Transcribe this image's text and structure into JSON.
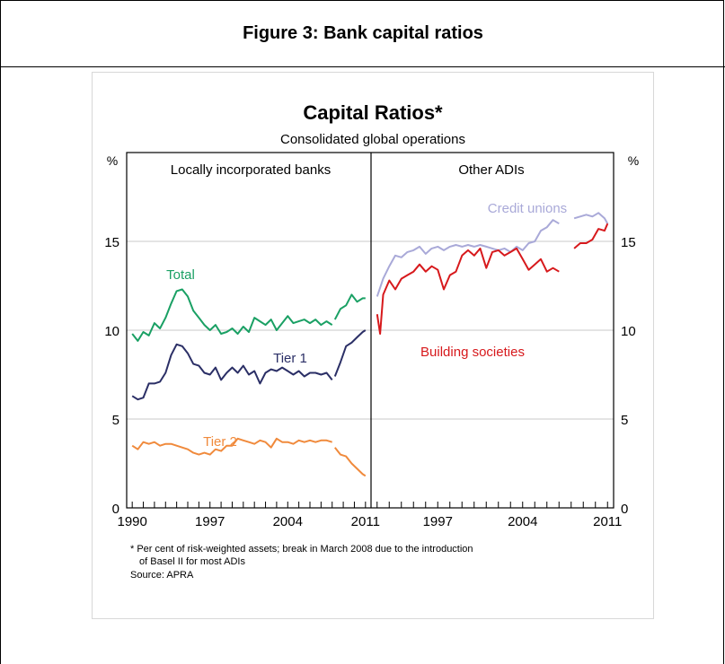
{
  "figure": {
    "heading": "Figure 3: Bank capital ratios"
  },
  "chart_data": {
    "type": "line",
    "title": "Capital Ratios*",
    "subtitle": "Consolidated global operations",
    "ylabel_left": "%",
    "ylabel_right": "%",
    "ylim": [
      0,
      20
    ],
    "yticks": [
      0,
      5,
      10,
      15
    ],
    "grid": true,
    "footnote_1": "* Per cent of risk-weighted assets; break in March 2008 due to the introduction",
    "footnote_2": "of Basel II for most ADIs",
    "source": "Source: APRA",
    "colors": {
      "total": "#1aa064",
      "tier1": "#2b2f66",
      "tier2": "#f08a3c",
      "credit_unions": "#a9a9d8",
      "building_societies": "#d7191c"
    },
    "panels": [
      {
        "title": "Locally incorporated banks",
        "xlim": [
          1989.5,
          2011.5
        ],
        "xtick_labels": [
          "1990",
          "1997",
          "2004",
          "2011"
        ],
        "xtick_values": [
          1990,
          1997,
          2004,
          2011
        ],
        "series": [
          {
            "name": "Total",
            "color_key": "total",
            "x": [
              1990,
              1990.5,
              1991,
              1991.5,
              1992,
              1992.5,
              1993,
              1993.5,
              1994,
              1994.5,
              1995,
              1995.5,
              1996,
              1996.5,
              1997,
              1997.5,
              1998,
              1998.5,
              1999,
              1999.5,
              2000,
              2000.5,
              2001,
              2001.5,
              2002,
              2002.5,
              2003,
              2003.5,
              2004,
              2004.5,
              2005,
              2005.5,
              2006,
              2006.5,
              2007,
              2007.5,
              2008
            ],
            "y": [
              9.8,
              9.4,
              9.9,
              9.7,
              10.4,
              10.1,
              10.7,
              11.5,
              12.2,
              12.3,
              11.9,
              11.1,
              10.7,
              10.3,
              10.0,
              10.3,
              9.8,
              9.9,
              10.1,
              9.8,
              10.2,
              9.9,
              10.7,
              10.5,
              10.3,
              10.6,
              10.0,
              10.4,
              10.8,
              10.4,
              10.5,
              10.6,
              10.4,
              10.6,
              10.3,
              10.5,
              10.3
            ]
          },
          {
            "name": "",
            "color_key": "total",
            "x": [
              2008.25,
              2008.75,
              2009.25,
              2009.75,
              2010.25,
              2010.75,
              2011
            ],
            "y": [
              10.6,
              11.2,
              11.4,
              12.0,
              11.6,
              11.8,
              11.8
            ]
          },
          {
            "name": "Tier 1",
            "color_key": "tier1",
            "x": [
              1990,
              1990.5,
              1991,
              1991.5,
              1992,
              1992.5,
              1993,
              1993.5,
              1994,
              1994.5,
              1995,
              1995.5,
              1996,
              1996.5,
              1997,
              1997.5,
              1998,
              1998.5,
              1999,
              1999.5,
              2000,
              2000.5,
              2001,
              2001.5,
              2002,
              2002.5,
              2003,
              2003.5,
              2004,
              2004.5,
              2005,
              2005.5,
              2006,
              2006.5,
              2007,
              2007.5,
              2008
            ],
            "y": [
              6.3,
              6.1,
              6.2,
              7.0,
              7.0,
              7.1,
              7.6,
              8.6,
              9.2,
              9.1,
              8.7,
              8.1,
              8.0,
              7.6,
              7.5,
              7.9,
              7.2,
              7.6,
              7.9,
              7.6,
              8.0,
              7.5,
              7.7,
              7.0,
              7.6,
              7.8,
              7.7,
              7.9,
              7.7,
              7.5,
              7.7,
              7.4,
              7.6,
              7.6,
              7.5,
              7.6,
              7.2
            ]
          },
          {
            "name": "",
            "color_key": "tier1",
            "x": [
              2008.25,
              2008.75,
              2009.25,
              2009.75,
              2010.25,
              2010.75,
              2011
            ],
            "y": [
              7.4,
              8.2,
              9.1,
              9.3,
              9.6,
              9.9,
              10.0
            ]
          },
          {
            "name": "Tier 2",
            "color_key": "tier2",
            "x": [
              1990,
              1990.5,
              1991,
              1991.5,
              1992,
              1992.5,
              1993,
              1993.5,
              1994,
              1994.5,
              1995,
              1995.5,
              1996,
              1996.5,
              1997,
              1997.5,
              1998,
              1998.5,
              1999,
              1999.5,
              2000,
              2000.5,
              2001,
              2001.5,
              2002,
              2002.5,
              2003,
              2003.5,
              2004,
              2004.5,
              2005,
              2005.5,
              2006,
              2006.5,
              2007,
              2007.5,
              2008
            ],
            "y": [
              3.5,
              3.3,
              3.7,
              3.6,
              3.7,
              3.5,
              3.6,
              3.6,
              3.5,
              3.4,
              3.3,
              3.1,
              3.0,
              3.1,
              3.0,
              3.3,
              3.2,
              3.5,
              3.5,
              3.9,
              3.8,
              3.7,
              3.6,
              3.8,
              3.7,
              3.4,
              3.9,
              3.7,
              3.7,
              3.6,
              3.8,
              3.7,
              3.8,
              3.7,
              3.8,
              3.8,
              3.7
            ]
          },
          {
            "name": "",
            "color_key": "tier2",
            "x": [
              2008.25,
              2008.75,
              2009.25,
              2009.75,
              2010.25,
              2010.75,
              2011
            ],
            "y": [
              3.4,
              3.0,
              2.9,
              2.5,
              2.2,
              1.9,
              1.8
            ]
          }
        ]
      },
      {
        "title": "Other ADIs",
        "xlim": [
          1991.5,
          2011.5
        ],
        "xtick_labels": [
          "1997",
          "2004",
          "2011"
        ],
        "xtick_values": [
          1997,
          2004,
          2011
        ],
        "series": [
          {
            "name": "Credit unions",
            "color_key": "credit_unions",
            "x": [
              1992,
              1992.5,
              1993,
              1993.5,
              1994,
              1994.5,
              1995,
              1995.5,
              1996,
              1996.5,
              1997,
              1997.5,
              1998,
              1998.5,
              1999,
              1999.5,
              2000,
              2000.5,
              2001,
              2001.5,
              2002,
              2002.5,
              2003,
              2003.5,
              2004,
              2004.5,
              2005,
              2005.5,
              2006,
              2006.5,
              2007
            ],
            "y": [
              11.9,
              12.9,
              13.6,
              14.2,
              14.1,
              14.4,
              14.5,
              14.7,
              14.3,
              14.6,
              14.7,
              14.5,
              14.7,
              14.8,
              14.7,
              14.8,
              14.7,
              14.8,
              14.7,
              14.6,
              14.5,
              14.6,
              14.4,
              14.7,
              14.5,
              14.9,
              15.0,
              15.6,
              15.8,
              16.2,
              16.0
            ]
          },
          {
            "name": "",
            "color_key": "credit_unions",
            "x": [
              2008.25,
              2008.75,
              2009.25,
              2009.75,
              2010.25,
              2010.75,
              2011
            ],
            "y": [
              16.3,
              16.4,
              16.5,
              16.4,
              16.6,
              16.3,
              16.0
            ]
          },
          {
            "name": "Building societies",
            "color_key": "building_societies",
            "x": [
              1992,
              1992.25,
              1992.5,
              1993,
              1993.5,
              1994,
              1994.5,
              1995,
              1995.5,
              1996,
              1996.5,
              1997,
              1997.5,
              1998,
              1998.5,
              1999,
              1999.5,
              2000,
              2000.5,
              2001,
              2001.5,
              2002,
              2002.5,
              2003,
              2003.5,
              2004,
              2004.5,
              2005,
              2005.5,
              2006,
              2006.5,
              2007
            ],
            "y": [
              10.9,
              9.8,
              12.0,
              12.8,
              12.3,
              12.9,
              13.1,
              13.3,
              13.7,
              13.3,
              13.6,
              13.4,
              12.3,
              13.1,
              13.3,
              14.2,
              14.5,
              14.2,
              14.6,
              13.5,
              14.4,
              14.5,
              14.2,
              14.4,
              14.6,
              14.0,
              13.4,
              13.7,
              14.0,
              13.3,
              13.5,
              13.3
            ]
          },
          {
            "name": "",
            "color_key": "building_societies",
            "x": [
              2008.25,
              2008.75,
              2009.25,
              2009.75,
              2010.25,
              2010.75,
              2011
            ],
            "y": [
              14.6,
              14.9,
              14.9,
              15.1,
              15.7,
              15.6,
              16.0
            ]
          }
        ]
      }
    ]
  }
}
